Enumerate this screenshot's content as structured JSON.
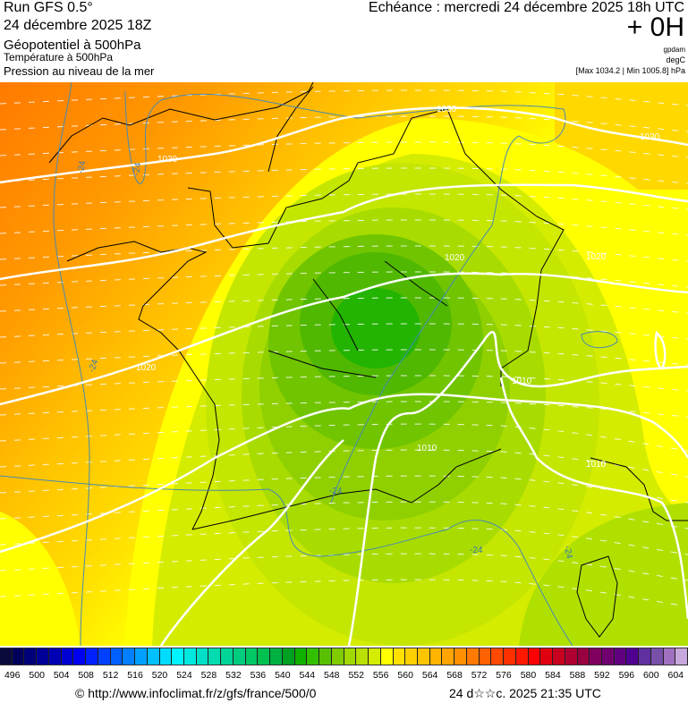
{
  "header": {
    "run": "Run GFS 0.5°",
    "run_date": "24 décembre 2025 18Z",
    "field_main": "Géopotentiel à 500hPa",
    "field_temp": "Température à 500hPa",
    "field_pressure": "Pression au niveau de la mer",
    "echeance": "Echéance : mercredi 24 décembre 2025 18h UTC",
    "lead": "+ 0H",
    "unit_geo": "gpdam",
    "unit_temp": "degC",
    "pressure_range": "[Max 1034.2 | Min 1005.8] hPa"
  },
  "map": {
    "isobar_labels": [
      "1030",
      "1030",
      "1030",
      "1020",
      "1020",
      "1020",
      "1010",
      "1010",
      "1010"
    ],
    "isotherm_labels": [
      "-24",
      "-24",
      "-24",
      "-24",
      "-24",
      "-24"
    ],
    "colors": {
      "isobar": "#ffffff",
      "isotherm": "#4a8ab0",
      "coast": "#000000"
    }
  },
  "colorbar": {
    "labels": [
      "496",
      "500",
      "504",
      "508",
      "512",
      "516",
      "520",
      "524",
      "528",
      "532",
      "536",
      "540",
      "544",
      "548",
      "552",
      "556",
      "560",
      "564",
      "568",
      "572",
      "576",
      "580",
      "584",
      "588",
      "592",
      "596",
      "600",
      "604"
    ],
    "colors": [
      "#0a0a3c",
      "#00005a",
      "#000078",
      "#000096",
      "#0000b4",
      "#0000d2",
      "#0000f0",
      "#0020ff",
      "#0040ff",
      "#0060ff",
      "#0080ff",
      "#00a0ff",
      "#00c0ff",
      "#00dcff",
      "#00f4ff",
      "#00e8e0",
      "#00e0c8",
      "#00dcb0",
      "#00d496",
      "#00cc80",
      "#00c864",
      "#00c050",
      "#00b040",
      "#00a020",
      "#10b000",
      "#30c000",
      "#58c000",
      "#80cc00",
      "#a0d800",
      "#b8e000",
      "#d4ec00",
      "#ffff00",
      "#ffe000",
      "#ffd000",
      "#ffc400",
      "#ffb400",
      "#ffa400",
      "#ff9000",
      "#ff7a00",
      "#ff6000",
      "#ff4800",
      "#ff3000",
      "#ff1800",
      "#ff0000",
      "#e00010",
      "#c80020",
      "#b00030",
      "#980040",
      "#800060",
      "#700070",
      "#600080",
      "#500090",
      "#6030a0",
      "#7850a8",
      "#a070c0",
      "#c8a8dc"
    ]
  },
  "footer": {
    "url": "© http://www.infoclimat.fr/z/gfs/france/500/0",
    "generated": "24 d☆☆c. 2025 21:35 UTC"
  }
}
